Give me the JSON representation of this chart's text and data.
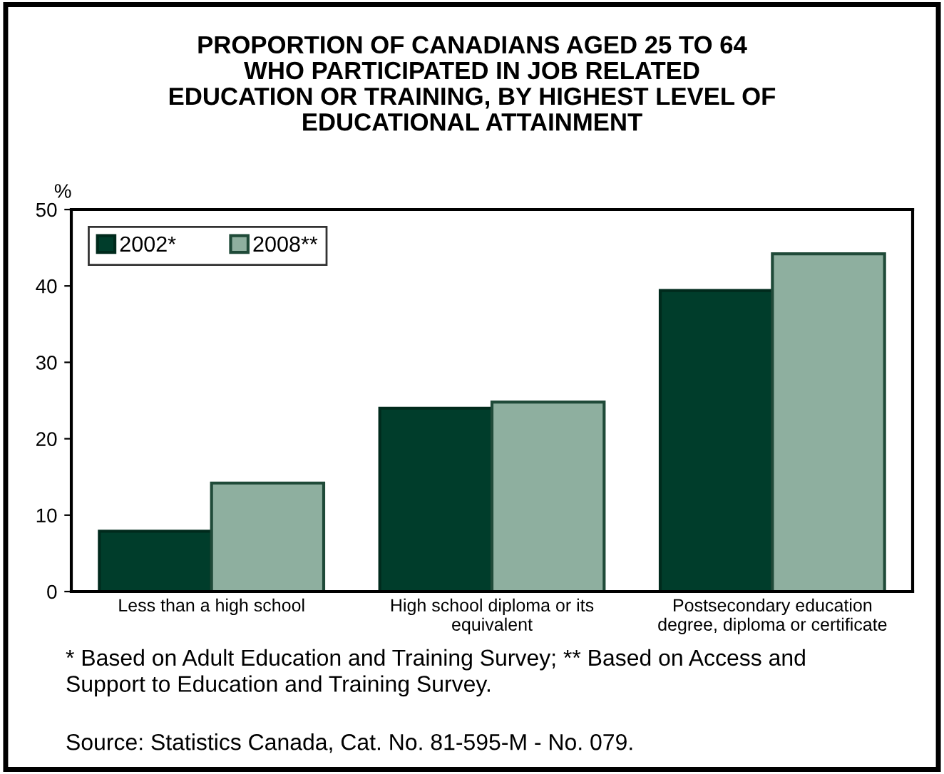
{
  "chart_data": {
    "type": "bar",
    "title": "PROPORTION OF CANADIANS AGED 25 TO 64\nWHO PARTICIPATED IN JOB RELATED\nEDUCATION OR TRAINING, BY HIGHEST LEVEL OF\nEDUCATIONAL ATTAINMENT",
    "ylabel": "%",
    "categories": [
      "Less than a high school",
      "High school diploma or its\nequivalent",
      "Postsecondary education\ndegree, diploma or certificate"
    ],
    "series": [
      {
        "name": "2002*",
        "color": "#003d2b",
        "values": [
          7.9,
          24.0,
          39.4
        ]
      },
      {
        "name": "2008**",
        "color": "#8eaf9f",
        "values": [
          14.2,
          24.8,
          44.2
        ]
      }
    ],
    "ylim": [
      0,
      50
    ],
    "yticks": [
      0,
      10,
      20,
      30,
      40,
      50
    ],
    "grid": false,
    "legend": "top left",
    "annotations": [
      "* Based on Adult Education and Training Survey; ** Based on Access and\nSupport to Education and Training Survey.",
      "Source: Statistics Canada, Cat. No. 81-595-M - No. 079."
    ]
  }
}
